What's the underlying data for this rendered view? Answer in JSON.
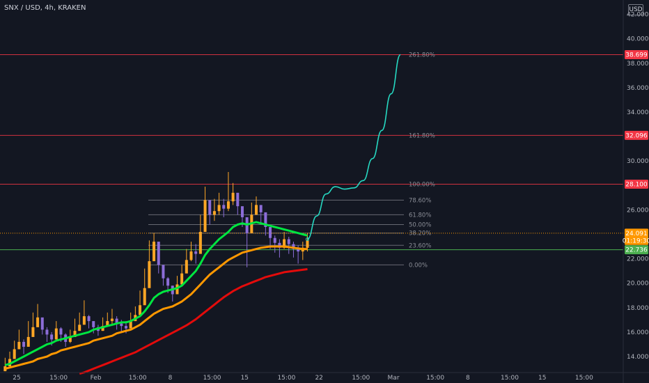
{
  "header": {
    "symbol_title": "SNX / USD, 4h, KRAKEN",
    "currency_button": "USD"
  },
  "chart_data": {
    "type": "line",
    "title": "SNX / USD, 4h, KRAKEN",
    "ylim": [
      12.6,
      42.2
    ],
    "y_ticks": [
      14,
      16,
      18,
      20,
      22,
      24,
      26,
      28,
      30,
      32,
      34,
      36,
      38,
      40,
      42
    ],
    "y_tick_labels": [
      "14.000",
      "16.000",
      "18.000",
      "20.000",
      "22.000",
      "24.000",
      "26.000",
      "28.000",
      "30.000",
      "32.000",
      "34.000",
      "36.000",
      "38.000",
      "40.000",
      "42.000"
    ],
    "x_ticks": [
      {
        "i": 3,
        "label": "25"
      },
      {
        "i": 12,
        "label": "15:00"
      },
      {
        "i": 20,
        "label": "Feb"
      },
      {
        "i": 29,
        "label": "15:00"
      },
      {
        "i": 36,
        "label": "8"
      },
      {
        "i": 45,
        "label": "15:00"
      },
      {
        "i": 52,
        "label": "15"
      },
      {
        "i": 61,
        "label": "15:00"
      },
      {
        "i": 68,
        "label": "22"
      },
      {
        "i": 77,
        "label": "15:00"
      },
      {
        "i": 84,
        "label": "Mar"
      },
      {
        "i": 93,
        "label": "15:00"
      },
      {
        "i": 100,
        "label": "8"
      },
      {
        "i": 109,
        "label": "15:00"
      },
      {
        "i": 116,
        "label": "15"
      },
      {
        "i": 125,
        "label": "15:00"
      }
    ],
    "x_count": 134,
    "candles_close": [
      13.2,
      13.8,
      14.6,
      15.2,
      14.8,
      15.6,
      16.4,
      17.2,
      16.2,
      15.8,
      15.4,
      16.3,
      15.8,
      15.2,
      15.6,
      16.1,
      16.6,
      17.3,
      16.9,
      16.4,
      16.1,
      16.5,
      16.9,
      17.1,
      16.7,
      16.5,
      16.3,
      16.9,
      17.4,
      18.2,
      19.6,
      21.8,
      23.4,
      21.5,
      20.4,
      19.8,
      19.1,
      19.9,
      20.8,
      21.9,
      22.6,
      22.4,
      24.2,
      26.8,
      25.6,
      25.9,
      26.4,
      26.1,
      26.7,
      27.4,
      26.3,
      25.4,
      24.1,
      25.6,
      26.4,
      25.8,
      24.6,
      23.7,
      23.3,
      22.9,
      23.6,
      23.2,
      22.8,
      22.6,
      22.9,
      23.5
    ],
    "candle_wicks": [
      [
        12.8,
        13.9
      ],
      [
        13.4,
        14.4
      ],
      [
        14.1,
        15.3
      ],
      [
        14.6,
        16.2
      ],
      [
        14.2,
        15.4
      ],
      [
        15.1,
        16.9
      ],
      [
        15.9,
        17.6
      ],
      [
        16.6,
        18.3
      ],
      [
        15.8,
        16.9
      ],
      [
        15.2,
        16.4
      ],
      [
        14.9,
        16.0
      ],
      [
        15.6,
        16.9
      ],
      [
        15.2,
        16.4
      ],
      [
        14.8,
        15.9
      ],
      [
        15.1,
        16.2
      ],
      [
        15.6,
        17.1
      ],
      [
        16.1,
        17.6
      ],
      [
        16.8,
        18.6
      ],
      [
        16.3,
        17.4
      ],
      [
        15.9,
        16.9
      ],
      [
        15.7,
        16.6
      ],
      [
        16.1,
        17.2
      ],
      [
        16.5,
        17.6
      ],
      [
        16.6,
        17.9
      ],
      [
        16.2,
        17.3
      ],
      [
        16.0,
        17.0
      ],
      [
        15.9,
        16.9
      ],
      [
        16.4,
        17.6
      ],
      [
        16.9,
        18.1
      ],
      [
        17.8,
        19.4
      ],
      [
        19.0,
        21.2
      ],
      [
        21.0,
        23.5
      ],
      [
        22.4,
        24.1
      ],
      [
        20.8,
        22.3
      ],
      [
        19.8,
        21.0
      ],
      [
        19.2,
        20.5
      ],
      [
        18.5,
        19.8
      ],
      [
        19.2,
        20.6
      ],
      [
        20.1,
        21.5
      ],
      [
        21.2,
        22.8
      ],
      [
        21.8,
        23.4
      ],
      [
        21.6,
        23.2
      ],
      [
        23.1,
        25.6
      ],
      [
        25.4,
        27.9
      ],
      [
        24.8,
        26.4
      ],
      [
        25.1,
        26.9
      ],
      [
        25.6,
        27.4
      ],
      [
        25.4,
        26.9
      ],
      [
        25.9,
        29.1
      ],
      [
        26.4,
        28.2
      ],
      [
        25.6,
        27.1
      ],
      [
        24.6,
        26.2
      ],
      [
        21.3,
        25.2
      ],
      [
        24.9,
        26.6
      ],
      [
        25.6,
        27.1
      ],
      [
        24.9,
        26.3
      ],
      [
        23.9,
        25.1
      ],
      [
        22.8,
        24.2
      ],
      [
        22.5,
        23.9
      ],
      [
        22.1,
        23.6
      ],
      [
        22.8,
        24.2
      ],
      [
        22.4,
        23.8
      ],
      [
        22.1,
        23.4
      ],
      [
        21.6,
        23.1
      ],
      [
        21.9,
        23.4
      ],
      [
        22.6,
        24.1
      ]
    ],
    "series": [
      {
        "name": "EMA fast",
        "color": "#00e640",
        "values": [
          13.3,
          13.4,
          13.6,
          13.8,
          14.0,
          14.2,
          14.4,
          14.6,
          14.8,
          15.0,
          15.1,
          15.3,
          15.4,
          15.5,
          15.6,
          15.7,
          15.8,
          15.9,
          16.0,
          16.2,
          16.3,
          16.4,
          16.5,
          16.6,
          16.7,
          16.8,
          16.8,
          16.9,
          17.1,
          17.3,
          17.7,
          18.2,
          18.8,
          19.1,
          19.3,
          19.4,
          19.5,
          19.6,
          19.8,
          20.2,
          20.6,
          21.0,
          21.6,
          22.3,
          22.8,
          23.2,
          23.6,
          23.9,
          24.2,
          24.6,
          24.8,
          24.9,
          24.8,
          24.9,
          25.0,
          24.9,
          24.8,
          24.7,
          24.6,
          24.5,
          24.4,
          24.3,
          24.2,
          24.1,
          24.0,
          23.9
        ]
      },
      {
        "name": "EMA mid",
        "color": "#ff9800",
        "values": [
          13.0,
          13.1,
          13.2,
          13.3,
          13.4,
          13.5,
          13.6,
          13.8,
          13.9,
          14.0,
          14.2,
          14.3,
          14.5,
          14.6,
          14.7,
          14.8,
          14.9,
          15.0,
          15.1,
          15.3,
          15.4,
          15.5,
          15.6,
          15.7,
          15.9,
          16.0,
          16.1,
          16.2,
          16.4,
          16.6,
          16.9,
          17.2,
          17.5,
          17.7,
          17.9,
          18.0,
          18.1,
          18.3,
          18.5,
          18.8,
          19.1,
          19.5,
          19.9,
          20.3,
          20.7,
          21.0,
          21.3,
          21.6,
          21.9,
          22.1,
          22.3,
          22.5,
          22.6,
          22.7,
          22.8,
          22.9,
          22.95,
          23.0,
          23.0,
          23.0,
          23.0,
          22.95,
          22.9,
          22.85,
          22.8,
          22.8
        ]
      },
      {
        "name": "EMA slow",
        "color": "#e30b0b",
        "values": [
          null,
          null,
          null,
          null,
          null,
          null,
          null,
          null,
          null,
          null,
          null,
          null,
          null,
          null,
          null,
          null,
          12.6,
          12.7,
          12.85,
          13.0,
          13.15,
          13.3,
          13.45,
          13.6,
          13.75,
          13.9,
          14.05,
          14.2,
          14.35,
          14.55,
          14.75,
          14.95,
          15.15,
          15.35,
          15.55,
          15.75,
          15.95,
          16.15,
          16.35,
          16.55,
          16.8,
          17.05,
          17.35,
          17.65,
          17.95,
          18.25,
          18.55,
          18.85,
          19.1,
          19.35,
          19.55,
          19.75,
          19.9,
          20.05,
          20.2,
          20.35,
          20.5,
          20.6,
          20.7,
          20.8,
          20.9,
          20.95,
          21.0,
          21.05,
          21.1,
          21.15
        ]
      }
    ],
    "projection": {
      "name": "projection",
      "color": "#26d9c2",
      "points": [
        [
          65,
          23.6
        ],
        [
          67,
          25.5
        ],
        [
          69,
          27.3
        ],
        [
          71,
          27.9
        ],
        [
          73,
          27.7
        ],
        [
          75,
          27.8
        ],
        [
          77,
          28.4
        ],
        [
          79,
          30.2
        ],
        [
          81,
          32.5
        ],
        [
          83,
          35.5
        ],
        [
          85,
          38.7
        ]
      ]
    },
    "fib_levels": [
      {
        "label": "0.00%",
        "value": 21.5,
        "color": "#8a8d96"
      },
      {
        "label": "23.60%",
        "value": 23.1,
        "color": "#8a8d96"
      },
      {
        "label": "38.20%",
        "value": 24.1,
        "color": "#8a8d96"
      },
      {
        "label": "50.00%",
        "value": 24.8,
        "color": "#8a8d96"
      },
      {
        "label": "61.80%",
        "value": 25.6,
        "color": "#8a8d96"
      },
      {
        "label": "78.60%",
        "value": 26.8,
        "color": "#8a8d96"
      },
      {
        "label": "100.00%",
        "value": 28.1,
        "color": "#f23645"
      },
      {
        "label": "161.80%",
        "value": 32.096,
        "color": "#f23645"
      },
      {
        "label": "261.80%",
        "value": 38.699,
        "color": "#f23645"
      }
    ],
    "price_tags": [
      {
        "label": "38.699",
        "value": 38.699,
        "color": "#f23645"
      },
      {
        "label": "32.096",
        "value": 32.096,
        "color": "#f23645"
      },
      {
        "label": "28.100",
        "value": 28.1,
        "color": "#f23645"
      },
      {
        "label": "24.091",
        "value": 24.091,
        "color": "#ff9800"
      },
      {
        "label": "01:19:30",
        "value": 23.5,
        "color": "#ff9800"
      },
      {
        "label": "22.736",
        "value": 22.736,
        "color": "#4caf50"
      }
    ],
    "grid": false
  }
}
